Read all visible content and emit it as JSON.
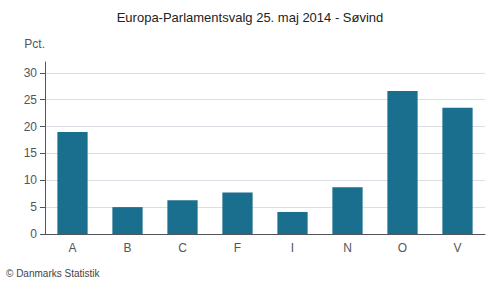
{
  "chart_data": {
    "type": "bar",
    "title": "Europa-Parlamentsvalg 25. maj 2014 - Søvind",
    "categories": [
      "A",
      "B",
      "C",
      "F",
      "I",
      "N",
      "O",
      "V"
    ],
    "values": [
      19.0,
      5.0,
      6.3,
      7.7,
      4.1,
      8.7,
      26.6,
      23.5
    ],
    "color": "#1a6e8e",
    "ylabel": "Pct.",
    "footer": "© Danmarks Statistik",
    "ylim": [
      0,
      32
    ],
    "yticks": [
      0,
      5,
      10,
      15,
      20,
      25,
      30
    ],
    "grid": true
  }
}
